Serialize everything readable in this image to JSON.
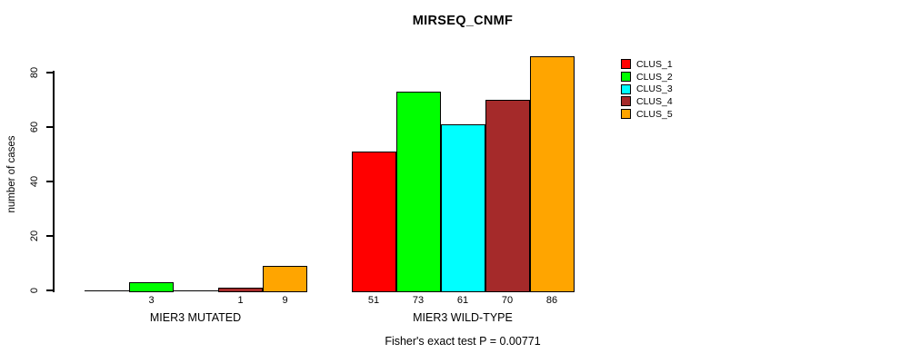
{
  "title": "MIRSEQ_CNMF",
  "caption": "Fisher's exact test P = 0.00771",
  "colors": {
    "background": "#ffffff",
    "axis": "#000000",
    "text": "#000000"
  },
  "chart_data": {
    "type": "bar",
    "title": "MIRSEQ_CNMF",
    "xlabel": "",
    "ylabel": "number of cases",
    "categories": [
      "MIER3 MUTATED",
      "MIER3 WILD-TYPE"
    ],
    "y_ticks": [
      0,
      20,
      40,
      60,
      80
    ],
    "ylim": [
      0,
      86
    ],
    "grid": false,
    "legend_position": "right-inside-top",
    "series": [
      {
        "name": "CLUS_1",
        "color": "#FF0000",
        "values": [
          0,
          51
        ]
      },
      {
        "name": "CLUS_2",
        "color": "#00FF00",
        "values": [
          3,
          73
        ]
      },
      {
        "name": "CLUS_3",
        "color": "#00FFFF",
        "values": [
          0,
          61
        ]
      },
      {
        "name": "CLUS_4",
        "color": "#A52A2A",
        "values": [
          1,
          70
        ]
      },
      {
        "name": "CLUS_5",
        "color": "#FFA500",
        "values": [
          9,
          86
        ]
      }
    ],
    "bar_value_labels": {
      "MIER3 MUTATED": [
        "",
        "3",
        "",
        "1",
        "9"
      ],
      "MIER3 WILD-TYPE": [
        "51",
        "73",
        "61",
        "70",
        "86"
      ]
    },
    "footnote": "Fisher's exact test P = 0.00771"
  }
}
